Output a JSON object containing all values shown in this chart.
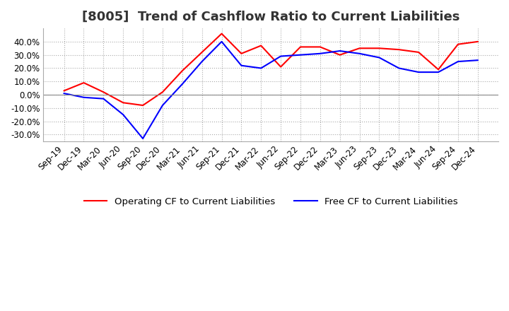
{
  "title": "[8005]  Trend of Cashflow Ratio to Current Liabilities",
  "x_labels": [
    "Sep-19",
    "Dec-19",
    "Mar-20",
    "Jun-20",
    "Sep-20",
    "Dec-20",
    "Mar-21",
    "Jun-21",
    "Sep-21",
    "Dec-21",
    "Mar-22",
    "Jun-22",
    "Sep-22",
    "Dec-22",
    "Mar-23",
    "Jun-23",
    "Sep-23",
    "Dec-23",
    "Mar-24",
    "Jun-24",
    "Sep-24",
    "Dec-24"
  ],
  "operating_cf": [
    3.0,
    9.0,
    2.0,
    -6.0,
    -8.0,
    2.0,
    18.0,
    32.0,
    46.0,
    31.0,
    37.0,
    21.0,
    36.0,
    36.0,
    30.0,
    35.0,
    35.0,
    34.0,
    32.0,
    19.0,
    38.0,
    40.0
  ],
  "free_cf": [
    1.0,
    -2.0,
    -3.0,
    -15.0,
    -33.0,
    -8.0,
    8.0,
    25.0,
    40.0,
    22.0,
    20.0,
    29.0,
    30.0,
    31.0,
    33.0,
    31.0,
    28.0,
    20.0,
    17.0,
    17.0,
    25.0,
    26.0
  ],
  "operating_color": "#ff0000",
  "free_color": "#0000ff",
  "ylim": [
    -35,
    50
  ],
  "yticks": [
    -30,
    -20,
    -10,
    0,
    10,
    20,
    30,
    40
  ],
  "background_color": "#ffffff",
  "grid_color": "#aaaaaa",
  "zero_line_color": "#888888",
  "legend_operating": "Operating CF to Current Liabilities",
  "legend_free": "Free CF to Current Liabilities",
  "title_fontsize": 13,
  "axis_fontsize": 8.5,
  "legend_fontsize": 9.5
}
